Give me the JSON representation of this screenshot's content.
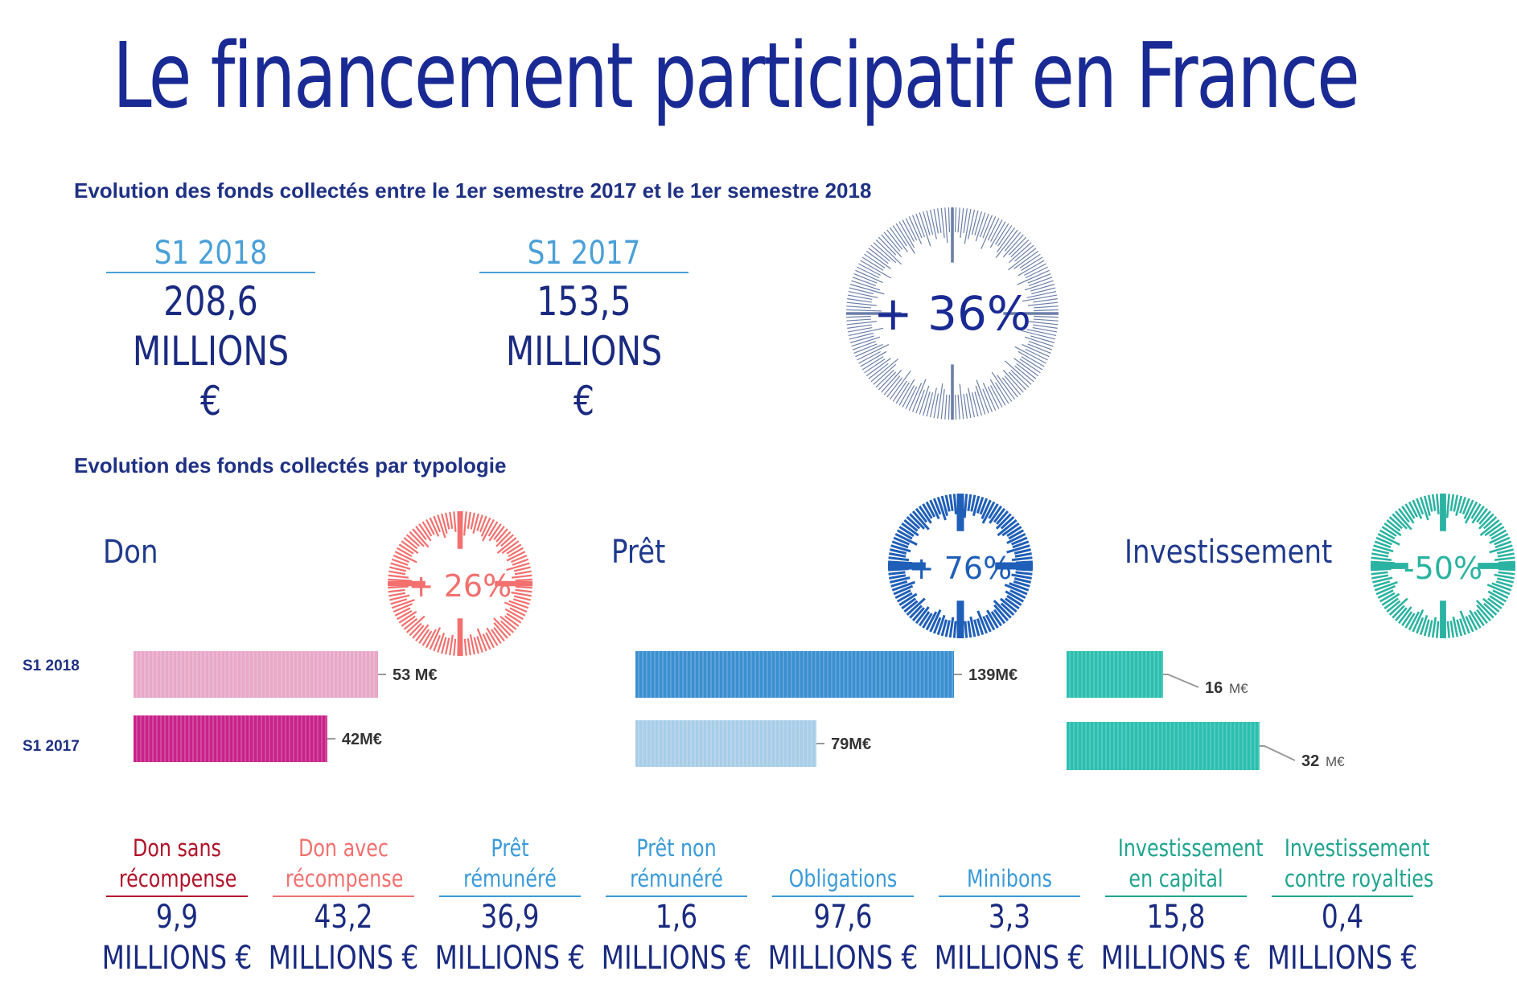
{
  "title": "Le financement participatif en France",
  "section1": {
    "heading": "Evolution des fonds collectés entre le 1er semestre 2017 et le 1er semestre 2018",
    "kpis": [
      {
        "label": "S1 2018",
        "value": "208,6",
        "unit": "MILLIONS €"
      },
      {
        "label": "S1 2017",
        "value": "153,5",
        "unit": "MILLIONS €"
      }
    ],
    "growth": "+ 36%",
    "ring_color": "#6b7fa8"
  },
  "section2": {
    "heading": "Evolution des fonds collectés par typologie",
    "row_labels": [
      "S1 2018",
      "S1 2017"
    ],
    "colors": {
      "don_ring": "#f2706e",
      "don_2018": "#e9a8c8",
      "don_2017": "#c8238a",
      "pret_ring": "#1f5fb8",
      "pret_2018": "#3a8fd0",
      "pret_2017": "#a8cde8",
      "inv_ring": "#2bb3a2",
      "inv_bar": "#2cbfb0"
    }
  },
  "chart_data": [
    {
      "type": "bar",
      "title": "Don",
      "growth": "+ 26%",
      "categories": [
        "S1 2018",
        "S1 2017"
      ],
      "values": [
        53,
        42
      ],
      "value_labels": [
        "53 M€",
        "42M€"
      ]
    },
    {
      "type": "bar",
      "title": "Prêt",
      "growth": "+ 76%",
      "categories": [
        "S1 2018",
        "S1 2017"
      ],
      "values": [
        139,
        79
      ],
      "value_labels": [
        "139M€",
        "79M€"
      ]
    },
    {
      "type": "bar",
      "title": "Investissement",
      "growth": "-50%",
      "categories": [
        "S1 2018",
        "S1 2017"
      ],
      "values": [
        16,
        32
      ],
      "value_labels": [
        "16",
        "32"
      ],
      "value_unit": "M€"
    }
  ],
  "breakdown": [
    {
      "name": [
        "Don sans",
        "récompense"
      ],
      "value": "9,9",
      "unit": "MILLIONS €",
      "color": "#b0132a"
    },
    {
      "name": [
        "Don avec",
        "récompense"
      ],
      "value": "43,2",
      "unit": "MILLIONS €",
      "color": "#f2706e"
    },
    {
      "name": [
        "Prêt",
        "rémunéré"
      ],
      "value": "36,9",
      "unit": "MILLIONS €",
      "color": "#3a9ad8"
    },
    {
      "name": [
        "Prêt non",
        "rémunéré"
      ],
      "value": "1,6",
      "unit": "MILLIONS €",
      "color": "#3a9ad8"
    },
    {
      "name": [
        "Obligations",
        ""
      ],
      "value": "97,6",
      "unit": "MILLIONS €",
      "color": "#3a9ad8"
    },
    {
      "name": [
        "Minibons",
        ""
      ],
      "value": "3,3",
      "unit": "MILLIONS €",
      "color": "#3a9ad8"
    },
    {
      "name": [
        "Investissement",
        "en capital"
      ],
      "value": "15,8",
      "unit": "MILLIONS €",
      "color": "#1fa48f"
    },
    {
      "name": [
        "Investissement",
        "contre royalties"
      ],
      "value": "0,4",
      "unit": "MILLIONS €",
      "color": "#1fa48f"
    }
  ]
}
